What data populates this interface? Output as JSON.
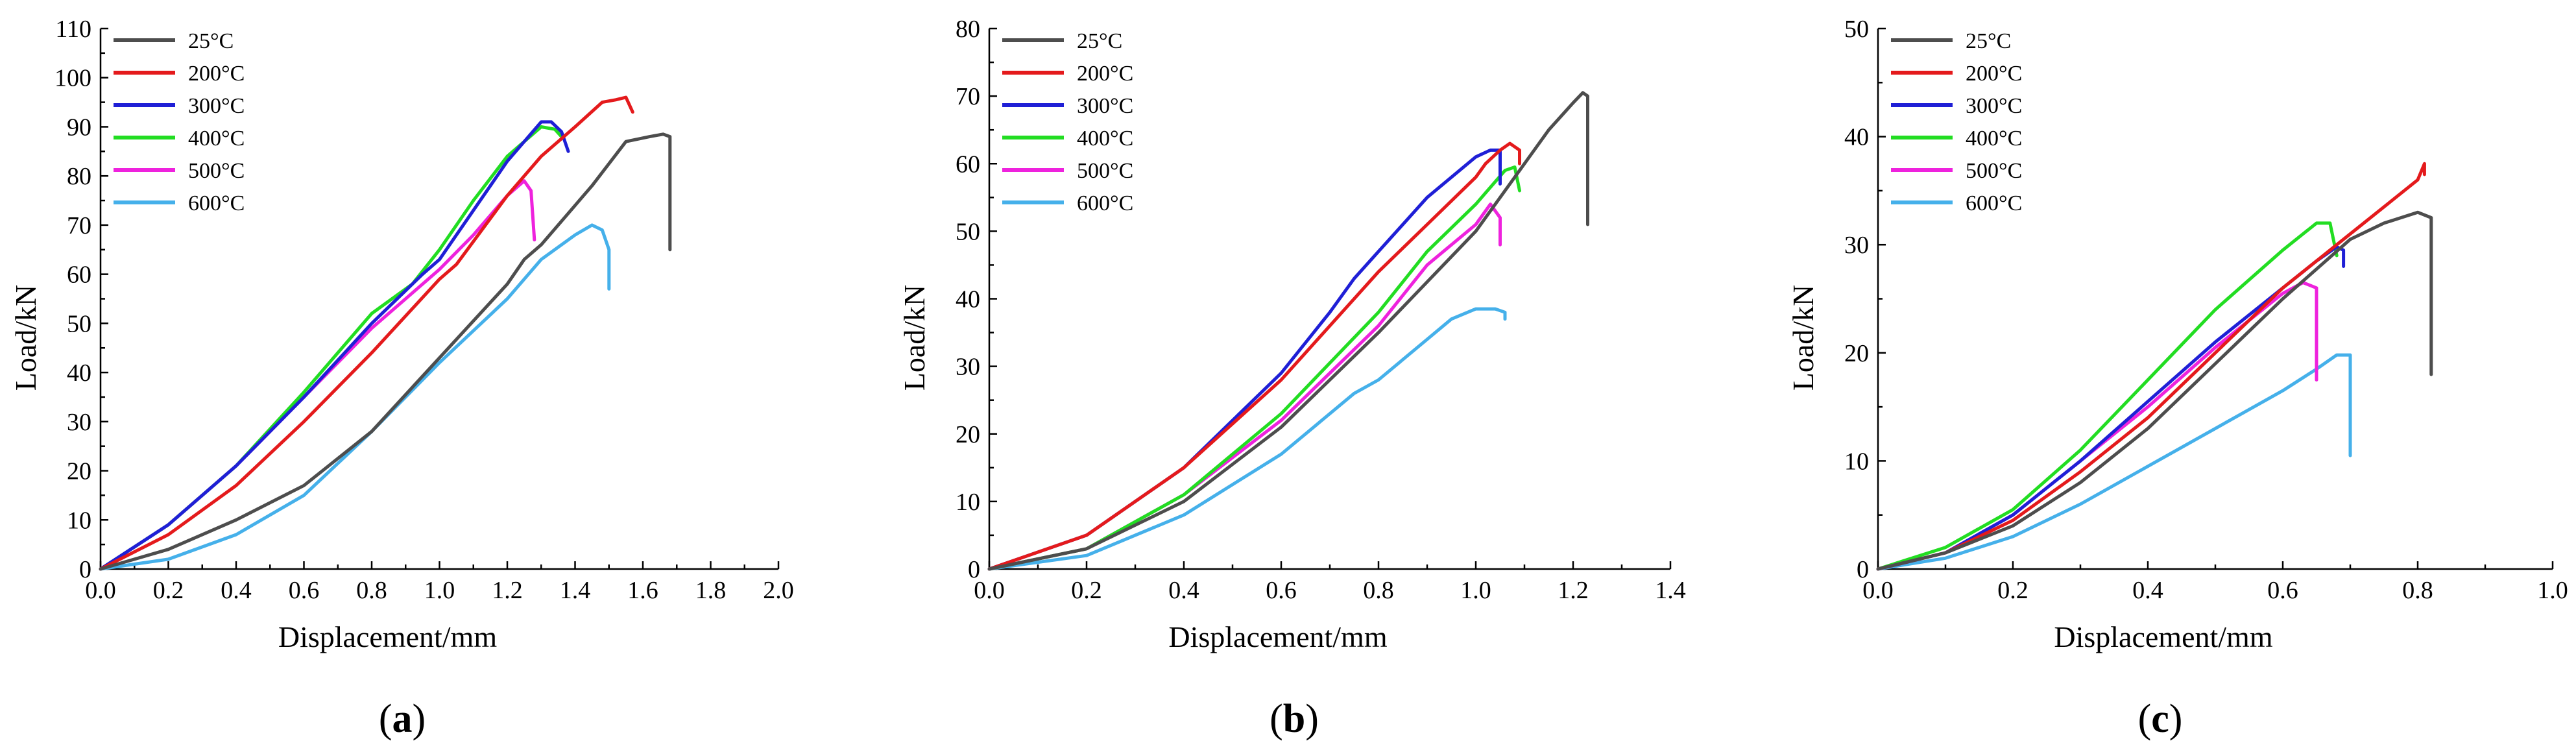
{
  "chart_data": [
    {
      "type": "line",
      "panel_label": "a",
      "xlabel": "Displacement/mm",
      "ylabel": "Load/kN",
      "xlim": [
        0,
        2.0
      ],
      "ylim": [
        0,
        110
      ],
      "xticks": [
        0.0,
        0.2,
        0.4,
        0.6,
        0.8,
        1.0,
        1.2,
        1.4,
        1.6,
        1.8,
        2.0
      ],
      "yticks": [
        0,
        10,
        20,
        30,
        40,
        50,
        60,
        70,
        80,
        90,
        100,
        110
      ],
      "xtick_labels": [
        "0.0",
        "0.2",
        "0.4",
        "0.6",
        "0.8",
        "1.0",
        "1.2",
        "1.4",
        "1.6",
        "1.8",
        "2.0"
      ],
      "ytick_labels": [
        "0",
        "10",
        "20",
        "30",
        "40",
        "50",
        "60",
        "70",
        "80",
        "90",
        "100",
        "110"
      ],
      "legend_position": "top-left",
      "series": [
        {
          "name": "25°C",
          "color": "#4d4d4d",
          "x": [
            0,
            0.2,
            0.4,
            0.6,
            0.8,
            1.0,
            1.2,
            1.25,
            1.3,
            1.45,
            1.55,
            1.62,
            1.66,
            1.68,
            1.68
          ],
          "y": [
            0,
            4,
            10,
            17,
            28,
            43,
            58,
            63,
            66,
            78,
            87,
            88,
            88.5,
            88,
            65
          ]
        },
        {
          "name": "200°C",
          "color": "#e41a1c",
          "x": [
            0,
            0.2,
            0.4,
            0.6,
            0.8,
            1.0,
            1.05,
            1.2,
            1.3,
            1.4,
            1.48,
            1.52,
            1.55,
            1.57
          ],
          "y": [
            0,
            7,
            17,
            30,
            44,
            59,
            62,
            76,
            84,
            90,
            95,
            95.5,
            96,
            93
          ]
        },
        {
          "name": "300°C",
          "color": "#1f1fd6",
          "x": [
            0,
            0.2,
            0.4,
            0.6,
            0.8,
            0.95,
            1.0,
            1.1,
            1.2,
            1.3,
            1.33,
            1.36,
            1.38
          ],
          "y": [
            0,
            9,
            21,
            35,
            50,
            60,
            63,
            73,
            83,
            91,
            91,
            89,
            85
          ]
        },
        {
          "name": "400°C",
          "color": "#22dd22",
          "x": [
            0,
            0.2,
            0.4,
            0.6,
            0.8,
            0.92,
            1.0,
            1.1,
            1.2,
            1.3,
            1.34,
            1.36
          ],
          "y": [
            0,
            9,
            21,
            36,
            52,
            58,
            65,
            75,
            84,
            90,
            89.5,
            88
          ]
        },
        {
          "name": "500°C",
          "color": "#ee22dd",
          "x": [
            0,
            0.2,
            0.4,
            0.6,
            0.8,
            0.9,
            1.0,
            1.1,
            1.2,
            1.25,
            1.27,
            1.28
          ],
          "y": [
            0,
            9,
            21,
            35,
            49,
            55,
            61,
            68,
            76,
            79,
            77,
            67
          ]
        },
        {
          "name": "600°C",
          "color": "#45b0ea",
          "x": [
            0,
            0.2,
            0.4,
            0.6,
            0.8,
            1.0,
            1.2,
            1.3,
            1.4,
            1.45,
            1.48,
            1.5,
            1.5
          ],
          "y": [
            0,
            2,
            7,
            15,
            28,
            42,
            55,
            63,
            68,
            70,
            69,
            65,
            57
          ]
        }
      ]
    },
    {
      "type": "line",
      "panel_label": "b",
      "xlabel": "Displacement/mm",
      "ylabel": "Load/kN",
      "xlim": [
        0,
        1.4
      ],
      "ylim": [
        0,
        80
      ],
      "xticks": [
        0.0,
        0.2,
        0.4,
        0.6,
        0.8,
        1.0,
        1.2,
        1.4
      ],
      "yticks": [
        0,
        10,
        20,
        30,
        40,
        50,
        60,
        70,
        80
      ],
      "xtick_labels": [
        "0.0",
        "0.2",
        "0.4",
        "0.6",
        "0.8",
        "1.0",
        "1.2",
        "1.4"
      ],
      "ytick_labels": [
        "0",
        "10",
        "20",
        "30",
        "40",
        "50",
        "60",
        "70",
        "80"
      ],
      "legend_position": "top-left",
      "series": [
        {
          "name": "25°C",
          "color": "#4d4d4d",
          "x": [
            0,
            0.2,
            0.4,
            0.6,
            0.8,
            1.0,
            1.1,
            1.15,
            1.2,
            1.22,
            1.23,
            1.23
          ],
          "y": [
            0,
            3,
            10,
            21,
            35,
            50,
            60,
            65,
            69,
            70.5,
            70,
            51
          ]
        },
        {
          "name": "200°C",
          "color": "#e41a1c",
          "x": [
            0,
            0.2,
            0.4,
            0.6,
            0.8,
            0.9,
            1.0,
            1.02,
            1.05,
            1.07,
            1.09,
            1.09
          ],
          "y": [
            0,
            5,
            15,
            28,
            44,
            51,
            58,
            60,
            62,
            63,
            62,
            60
          ]
        },
        {
          "name": "300°C",
          "color": "#1f1fd6",
          "x": [
            0,
            0.2,
            0.4,
            0.6,
            0.7,
            0.75,
            0.8,
            0.9,
            1.0,
            1.03,
            1.05,
            1.05
          ],
          "y": [
            0,
            5,
            15,
            29,
            38,
            43,
            47,
            55,
            61,
            62,
            62,
            57
          ]
        },
        {
          "name": "400°C",
          "color": "#22dd22",
          "x": [
            0,
            0.2,
            0.4,
            0.6,
            0.8,
            0.9,
            1.0,
            1.06,
            1.08,
            1.09
          ],
          "y": [
            0,
            3,
            11,
            23,
            38,
            47,
            54,
            59,
            59.5,
            56
          ]
        },
        {
          "name": "500°C",
          "color": "#ee22dd",
          "x": [
            0,
            0.2,
            0.4,
            0.6,
            0.8,
            0.9,
            1.0,
            1.03,
            1.05,
            1.05
          ],
          "y": [
            0,
            3,
            11,
            22,
            36,
            45,
            51,
            54,
            52,
            48
          ]
        },
        {
          "name": "600°C",
          "color": "#45b0ea",
          "x": [
            0,
            0.2,
            0.4,
            0.6,
            0.75,
            0.8,
            0.9,
            0.95,
            1.0,
            1.04,
            1.06,
            1.06
          ],
          "y": [
            0,
            2,
            8,
            17,
            26,
            28,
            34,
            37,
            38.5,
            38.5,
            38,
            37
          ]
        }
      ]
    },
    {
      "type": "line",
      "panel_label": "c",
      "xlabel": "Displacement/mm",
      "ylabel": "Load/kN",
      "xlim": [
        0,
        1.0
      ],
      "ylim": [
        0,
        50
      ],
      "xticks": [
        0.0,
        0.2,
        0.4,
        0.6,
        0.8,
        1.0
      ],
      "yticks": [
        0,
        10,
        20,
        30,
        40,
        50
      ],
      "xtick_labels": [
        "0.0",
        "0.2",
        "0.4",
        "0.6",
        "0.8",
        "1.0"
      ],
      "ytick_labels": [
        "0",
        "10",
        "20",
        "30",
        "40",
        "50"
      ],
      "legend_position": "top-left",
      "series": [
        {
          "name": "25°C",
          "color": "#4d4d4d",
          "x": [
            0,
            0.1,
            0.2,
            0.3,
            0.4,
            0.5,
            0.6,
            0.7,
            0.75,
            0.8,
            0.82,
            0.82
          ],
          "y": [
            0,
            1.5,
            4,
            8,
            13,
            19,
            25,
            30.5,
            32,
            33,
            32.5,
            18
          ]
        },
        {
          "name": "200°C",
          "color": "#e41a1c",
          "x": [
            0,
            0.1,
            0.2,
            0.3,
            0.4,
            0.5,
            0.6,
            0.7,
            0.8,
            0.81,
            0.81
          ],
          "y": [
            0,
            1.5,
            4.5,
            9,
            14,
            20,
            26,
            31,
            36,
            37.5,
            36.5
          ]
        },
        {
          "name": "300°C",
          "color": "#1f1fd6",
          "x": [
            0,
            0.1,
            0.2,
            0.3,
            0.4,
            0.5,
            0.6,
            0.65,
            0.68,
            0.69,
            0.69
          ],
          "y": [
            0,
            1.5,
            5,
            10,
            15.5,
            21,
            26,
            28.5,
            29.8,
            29.5,
            28
          ]
        },
        {
          "name": "400°C",
          "color": "#22dd22",
          "x": [
            0,
            0.1,
            0.2,
            0.3,
            0.4,
            0.5,
            0.6,
            0.65,
            0.67,
            0.68
          ],
          "y": [
            0,
            2,
            5.5,
            11,
            17.5,
            24,
            29.5,
            32,
            32,
            29
          ]
        },
        {
          "name": "500°C",
          "color": "#ee22dd",
          "x": [
            0,
            0.1,
            0.2,
            0.3,
            0.4,
            0.5,
            0.6,
            0.63,
            0.65,
            0.65
          ],
          "y": [
            0,
            1.5,
            5,
            10,
            15,
            20.5,
            25.5,
            26.5,
            26,
            17.5
          ]
        },
        {
          "name": "600°C",
          "color": "#45b0ea",
          "x": [
            0,
            0.1,
            0.2,
            0.3,
            0.4,
            0.5,
            0.6,
            0.65,
            0.68,
            0.7,
            0.7
          ],
          "y": [
            0,
            1,
            3,
            6,
            9.5,
            13,
            16.5,
            18.5,
            19.8,
            19.8,
            10.5
          ]
        }
      ]
    }
  ]
}
